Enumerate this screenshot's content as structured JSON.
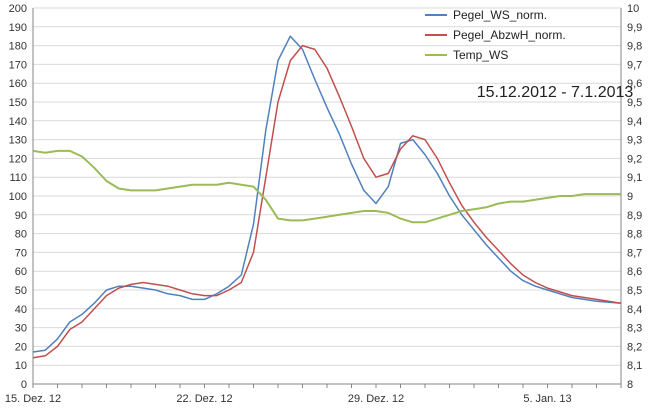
{
  "chart_data": {
    "type": "line",
    "title": "",
    "annotation": "15.12.2012 - 7.1.2013",
    "xlabel": "",
    "ylabel": "",
    "x_ticks": [
      "15. Dez. 12",
      "22. Dez. 12",
      "29. Dez. 12",
      "5. Jan. 13"
    ],
    "x_range": [
      "2012-12-15",
      "2013-01-08"
    ],
    "ylim": [
      0,
      200
    ],
    "ytick_step": 10,
    "y2lim": [
      8,
      10
    ],
    "y2tick_step": 0.1,
    "y2_tick_labels": [
      "8",
      "8,1",
      "8,2",
      "8,3",
      "8,4",
      "8,5",
      "8,6",
      "8,7",
      "8,8",
      "8,9",
      "9",
      "9,1",
      "9,2",
      "9,3",
      "9,4",
      "9,5",
      "9,6",
      "9,7",
      "9,8",
      "9,9",
      "10"
    ],
    "grid": true,
    "legend_position": "top-right",
    "series": [
      {
        "name": "Pegel_WS_norm.",
        "axis": "left",
        "color": "#4f81bd",
        "points": [
          [
            "2012-12-15",
            17
          ],
          [
            "2012-12-15T12:00",
            18
          ],
          [
            "2012-12-16",
            24
          ],
          [
            "2012-12-16T12:00",
            33
          ],
          [
            "2012-12-17",
            37
          ],
          [
            "2012-12-17T12:00",
            43
          ],
          [
            "2012-12-18",
            50
          ],
          [
            "2012-12-18T12:00",
            52
          ],
          [
            "2012-12-19",
            52
          ],
          [
            "2012-12-19T12:00",
            51
          ],
          [
            "2012-12-20",
            50
          ],
          [
            "2012-12-20T12:00",
            48
          ],
          [
            "2012-12-21",
            47
          ],
          [
            "2012-12-21T12:00",
            45
          ],
          [
            "2012-12-22",
            45
          ],
          [
            "2012-12-22T12:00",
            48
          ],
          [
            "2012-12-23",
            52
          ],
          [
            "2012-12-23T12:00",
            58
          ],
          [
            "2012-12-24",
            85
          ],
          [
            "2012-12-24T12:00",
            135
          ],
          [
            "2012-12-25",
            172
          ],
          [
            "2012-12-25T12:00",
            185
          ],
          [
            "2012-12-26",
            178
          ],
          [
            "2012-12-26T12:00",
            162
          ],
          [
            "2012-12-27",
            147
          ],
          [
            "2012-12-27T12:00",
            133
          ],
          [
            "2012-12-28",
            117
          ],
          [
            "2012-12-28T12:00",
            103
          ],
          [
            "2012-12-29",
            96
          ],
          [
            "2012-12-29T12:00",
            105
          ],
          [
            "2012-12-30",
            128
          ],
          [
            "2012-12-30T12:00",
            130
          ],
          [
            "2012-12-31",
            122
          ],
          [
            "2012-12-31T12:00",
            112
          ],
          [
            "2013-01-01",
            100
          ],
          [
            "2013-01-01T12:00",
            90
          ],
          [
            "2013-01-02",
            82
          ],
          [
            "2013-01-02T12:00",
            74
          ],
          [
            "2013-01-03",
            67
          ],
          [
            "2013-01-03T12:00",
            60
          ],
          [
            "2013-01-04",
            55
          ],
          [
            "2013-01-04T12:00",
            52
          ],
          [
            "2013-01-05",
            50
          ],
          [
            "2013-01-05T12:00",
            48
          ],
          [
            "2013-01-06",
            46
          ],
          [
            "2013-01-06T12:00",
            45
          ],
          [
            "2013-01-07",
            44
          ],
          [
            "2013-01-08",
            43
          ]
        ]
      },
      {
        "name": "Pegel_AbzwH_norm.",
        "axis": "left",
        "color": "#c0504d",
        "points": [
          [
            "2012-12-15",
            14
          ],
          [
            "2012-12-15T12:00",
            15
          ],
          [
            "2012-12-16",
            20
          ],
          [
            "2012-12-16T12:00",
            29
          ],
          [
            "2012-12-17",
            33
          ],
          [
            "2012-12-17T12:00",
            40
          ],
          [
            "2012-12-18",
            47
          ],
          [
            "2012-12-18T12:00",
            51
          ],
          [
            "2012-12-19",
            53
          ],
          [
            "2012-12-19T12:00",
            54
          ],
          [
            "2012-12-20",
            53
          ],
          [
            "2012-12-20T12:00",
            52
          ],
          [
            "2012-12-21",
            50
          ],
          [
            "2012-12-21T12:00",
            48
          ],
          [
            "2012-12-22",
            47
          ],
          [
            "2012-12-22T12:00",
            47
          ],
          [
            "2012-12-23",
            50
          ],
          [
            "2012-12-23T12:00",
            54
          ],
          [
            "2012-12-24",
            70
          ],
          [
            "2012-12-24T12:00",
            110
          ],
          [
            "2012-12-25",
            150
          ],
          [
            "2012-12-25T12:00",
            172
          ],
          [
            "2012-12-26",
            180
          ],
          [
            "2012-12-26T12:00",
            178
          ],
          [
            "2012-12-27",
            168
          ],
          [
            "2012-12-27T12:00",
            153
          ],
          [
            "2012-12-28",
            137
          ],
          [
            "2012-12-28T12:00",
            120
          ],
          [
            "2012-12-29",
            110
          ],
          [
            "2012-12-29T12:00",
            112
          ],
          [
            "2012-12-30",
            125
          ],
          [
            "2012-12-30T12:00",
            132
          ],
          [
            "2012-12-31",
            130
          ],
          [
            "2012-12-31T12:00",
            120
          ],
          [
            "2013-01-01",
            107
          ],
          [
            "2013-01-01T12:00",
            95
          ],
          [
            "2013-01-02",
            86
          ],
          [
            "2013-01-02T12:00",
            78
          ],
          [
            "2013-01-03",
            71
          ],
          [
            "2013-01-03T12:00",
            64
          ],
          [
            "2013-01-04",
            58
          ],
          [
            "2013-01-04T12:00",
            54
          ],
          [
            "2013-01-05",
            51
          ],
          [
            "2013-01-05T12:00",
            49
          ],
          [
            "2013-01-06",
            47
          ],
          [
            "2013-01-06T12:00",
            46
          ],
          [
            "2013-01-07",
            45
          ],
          [
            "2013-01-08",
            43
          ]
        ]
      },
      {
        "name": "Temp_WS",
        "axis": "right",
        "color": "#9bbb59",
        "points": [
          [
            "2012-12-15",
            9.24
          ],
          [
            "2012-12-15T12:00",
            9.23
          ],
          [
            "2012-12-16",
            9.24
          ],
          [
            "2012-12-16T12:00",
            9.24
          ],
          [
            "2012-12-17",
            9.21
          ],
          [
            "2012-12-17T12:00",
            9.15
          ],
          [
            "2012-12-18",
            9.08
          ],
          [
            "2012-12-18T12:00",
            9.04
          ],
          [
            "2012-12-19",
            9.03
          ],
          [
            "2012-12-19T12:00",
            9.03
          ],
          [
            "2012-12-20",
            9.03
          ],
          [
            "2012-12-20T12:00",
            9.04
          ],
          [
            "2012-12-21",
            9.05
          ],
          [
            "2012-12-21T12:00",
            9.06
          ],
          [
            "2012-12-22",
            9.06
          ],
          [
            "2012-12-22T12:00",
            9.06
          ],
          [
            "2012-12-23",
            9.07
          ],
          [
            "2012-12-23T12:00",
            9.06
          ],
          [
            "2012-12-24",
            9.05
          ],
          [
            "2012-12-24T12:00",
            8.98
          ],
          [
            "2012-12-25",
            8.88
          ],
          [
            "2012-12-25T12:00",
            8.87
          ],
          [
            "2012-12-26",
            8.87
          ],
          [
            "2012-12-26T12:00",
            8.88
          ],
          [
            "2012-12-27",
            8.89
          ],
          [
            "2012-12-27T12:00",
            8.9
          ],
          [
            "2012-12-28",
            8.91
          ],
          [
            "2012-12-28T12:00",
            8.92
          ],
          [
            "2012-12-29",
            8.92
          ],
          [
            "2012-12-29T12:00",
            8.91
          ],
          [
            "2012-12-30",
            8.88
          ],
          [
            "2012-12-30T12:00",
            8.86
          ],
          [
            "2012-12-31",
            8.86
          ],
          [
            "2012-12-31T12:00",
            8.88
          ],
          [
            "2013-01-01",
            8.9
          ],
          [
            "2013-01-01T12:00",
            8.92
          ],
          [
            "2013-01-02",
            8.93
          ],
          [
            "2013-01-02T12:00",
            8.94
          ],
          [
            "2013-01-03",
            8.96
          ],
          [
            "2013-01-03T12:00",
            8.97
          ],
          [
            "2013-01-04",
            8.97
          ],
          [
            "2013-01-04T12:00",
            8.98
          ],
          [
            "2013-01-05",
            8.99
          ],
          [
            "2013-01-05T12:00",
            9.0
          ],
          [
            "2013-01-06",
            9.0
          ],
          [
            "2013-01-06T12:00",
            9.01
          ],
          [
            "2013-01-07",
            9.01
          ],
          [
            "2013-01-07T12:00",
            9.01
          ],
          [
            "2013-01-08",
            9.01
          ]
        ]
      }
    ]
  }
}
